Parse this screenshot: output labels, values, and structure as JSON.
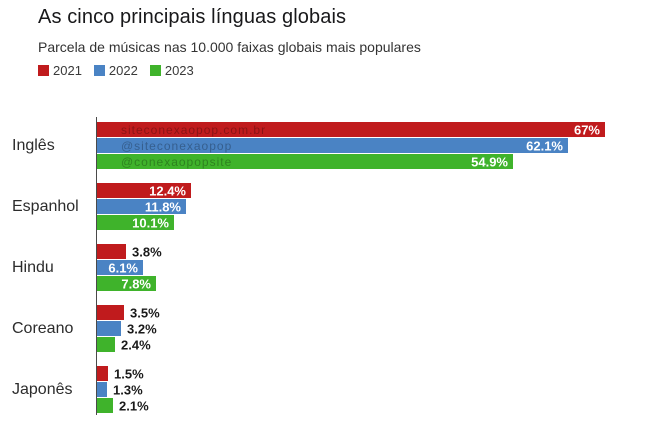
{
  "header": {
    "title": "As cinco principais línguas globais",
    "subtitle": "Parcela de músicas nas 10.000 faixas globais mais populares"
  },
  "legend": [
    {
      "label": "2021",
      "color": "#c01b1d"
    },
    {
      "label": "2022",
      "color": "#4a83c4"
    },
    {
      "label": "2023",
      "color": "#3fb32b"
    }
  ],
  "chart_data": {
    "type": "bar",
    "orientation": "horizontal",
    "title": "As cinco principais línguas globais",
    "subtitle": "Parcela de músicas nas 10.000 faixas globais mais populares",
    "categories": [
      "Inglês",
      "Espanhol",
      "Hindu",
      "Coreano",
      "Japonês"
    ],
    "series": [
      {
        "name": "2021",
        "color": "#c01b1d",
        "values": [
          67,
          12.4,
          3.8,
          3.5,
          1.5
        ],
        "labels": [
          "67%",
          "12.4%",
          "3.8%",
          "3.5%",
          "1.5%"
        ]
      },
      {
        "name": "2022",
        "color": "#4a83c4",
        "values": [
          62.1,
          11.8,
          6.1,
          3.2,
          1.3
        ],
        "labels": [
          "62.1%",
          "11.8%",
          "6.1%",
          "3.2%",
          "1.3%"
        ]
      },
      {
        "name": "2023",
        "color": "#3fb32b",
        "values": [
          54.9,
          10.1,
          7.8,
          2.4,
          2.1
        ],
        "labels": [
          "54.9%",
          "10.1%",
          "7.8%",
          "2.4%",
          "2.1%"
        ]
      }
    ],
    "xlim": [
      0,
      67
    ],
    "grid": false,
    "legend_position": "top",
    "watermarks_first_group": [
      "siteconexaopop.com.br",
      "@siteconexaopop",
      "@conexaopopsite"
    ]
  }
}
